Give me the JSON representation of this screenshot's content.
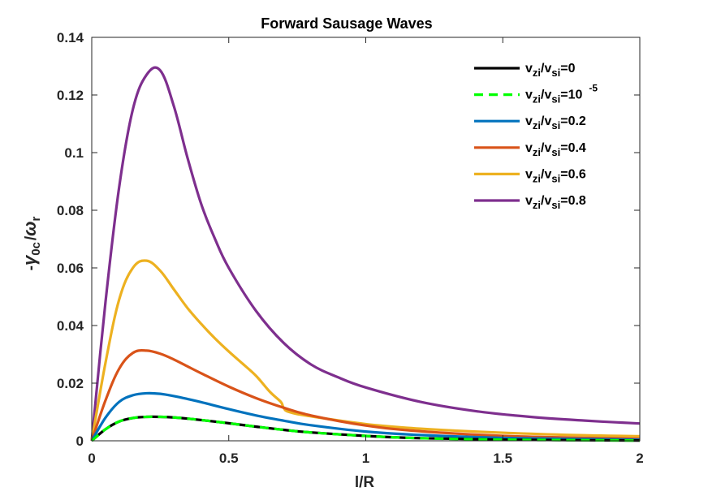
{
  "chart_data": {
    "type": "line",
    "title": "Forward Sausage Waves",
    "xlabel": "l/R",
    "ylabel": {
      "prefix": "-",
      "gamma": "γ",
      "gamma_sub": "0c",
      "slash": "/",
      "omega": "ω",
      "omega_sub": "r"
    },
    "xlim": [
      0,
      2
    ],
    "ylim": [
      0,
      0.14
    ],
    "xticks": [
      0,
      0.5,
      1,
      1.5,
      2
    ],
    "xtick_labels": [
      "0",
      "0.5",
      "1",
      "1.5",
      "2"
    ],
    "yticks": [
      0,
      0.02,
      0.04,
      0.06,
      0.08,
      0.1,
      0.12,
      0.14
    ],
    "ytick_labels": [
      "0",
      "0.02",
      "0.04",
      "0.06",
      "0.08",
      "0.1",
      "0.12",
      "0.14"
    ],
    "grid": false,
    "legend_position": "top-right",
    "series": [
      {
        "legend": {
          "v1": "v",
          "s1": "zi",
          "slash": "/",
          "v2": "v",
          "s2": "si",
          "eq": "=0",
          "sup": ""
        },
        "color": "#000000",
        "dash": "solid",
        "x": [
          0.0,
          0.05,
          0.1,
          0.15,
          0.2,
          0.25,
          0.3,
          0.35,
          0.4,
          0.5,
          0.6,
          0.7,
          0.8,
          1.0,
          1.2,
          1.5,
          1.8,
          2.0
        ],
        "y": [
          0.0,
          0.004,
          0.0067,
          0.0079,
          0.0083,
          0.0083,
          0.0081,
          0.0077,
          0.0072,
          0.0061,
          0.0049,
          0.0038,
          0.0029,
          0.0017,
          0.0009,
          0.0004,
          0.0002,
          0.0001
        ]
      },
      {
        "legend": {
          "v1": "v",
          "s1": "zi",
          "slash": "/",
          "v2": "v",
          "s2": "si",
          "eq": "=10",
          "sup": "-5"
        },
        "color": "#00ff00",
        "dash": "dashed",
        "x": [
          0.0,
          0.05,
          0.1,
          0.15,
          0.2,
          0.25,
          0.3,
          0.35,
          0.4,
          0.5,
          0.6,
          0.7,
          0.8,
          1.0,
          1.2,
          1.5,
          1.8,
          2.0
        ],
        "y": [
          0.0,
          0.004,
          0.0067,
          0.0079,
          0.0083,
          0.0083,
          0.0081,
          0.0077,
          0.0072,
          0.0061,
          0.0049,
          0.0038,
          0.0029,
          0.0017,
          0.0009,
          0.0004,
          0.0002,
          0.0001
        ]
      },
      {
        "legend": {
          "v1": "v",
          "s1": "zi",
          "slash": "/",
          "v2": "v",
          "s2": "si",
          "eq": "=0.2",
          "sup": ""
        },
        "color": "#0072bd",
        "dash": "solid",
        "x": [
          0.0,
          0.05,
          0.1,
          0.15,
          0.2,
          0.25,
          0.3,
          0.35,
          0.4,
          0.5,
          0.6,
          0.7,
          0.8,
          1.0,
          1.2,
          1.5,
          1.8,
          2.0
        ],
        "y": [
          0.0,
          0.008,
          0.0135,
          0.0158,
          0.0165,
          0.0163,
          0.0155,
          0.0145,
          0.0134,
          0.011,
          0.0088,
          0.007,
          0.0054,
          0.0032,
          0.002,
          0.001,
          0.0006,
          0.0004
        ]
      },
      {
        "legend": {
          "v1": "v",
          "s1": "zi",
          "slash": "/",
          "v2": "v",
          "s2": "si",
          "eq": "=0.4",
          "sup": ""
        },
        "color": "#d95319",
        "dash": "solid",
        "x": [
          0.0,
          0.05,
          0.1,
          0.15,
          0.2,
          0.25,
          0.3,
          0.35,
          0.4,
          0.5,
          0.6,
          0.7,
          0.8,
          1.0,
          1.2,
          1.5,
          1.8,
          2.0
        ],
        "y": [
          0.0,
          0.014,
          0.025,
          0.0305,
          0.0313,
          0.0302,
          0.0282,
          0.0258,
          0.0234,
          0.0188,
          0.0148,
          0.0115,
          0.0088,
          0.0053,
          0.0033,
          0.0017,
          0.001,
          0.0007
        ]
      },
      {
        "legend": {
          "v1": "v",
          "s1": "zi",
          "slash": "/",
          "v2": "v",
          "s2": "si",
          "eq": "=0.6",
          "sup": ""
        },
        "color": "#edb120",
        "dash": "solid",
        "x": [
          0.0,
          0.05,
          0.1,
          0.15,
          0.2,
          0.25,
          0.3,
          0.35,
          0.4,
          0.45,
          0.5,
          0.55,
          0.6,
          0.65,
          0.69,
          0.7,
          0.72,
          0.8,
          1.0,
          1.2,
          1.5,
          1.8,
          2.0
        ],
        "y": [
          0.0,
          0.027,
          0.049,
          0.06,
          0.0625,
          0.059,
          0.0525,
          0.046,
          0.0405,
          0.0355,
          0.031,
          0.0268,
          0.0225,
          0.017,
          0.0135,
          0.0115,
          0.01,
          0.0085,
          0.0058,
          0.0042,
          0.0028,
          0.0019,
          0.0016
        ]
      },
      {
        "legend": {
          "v1": "v",
          "s1": "zi",
          "slash": "/",
          "v2": "v",
          "s2": "si",
          "eq": "=0.8",
          "sup": ""
        },
        "color": "#7e2f8e",
        "dash": "solid",
        "x": [
          0.0,
          0.05,
          0.1,
          0.15,
          0.2,
          0.25,
          0.3,
          0.35,
          0.4,
          0.45,
          0.5,
          0.6,
          0.7,
          0.8,
          0.9,
          1.0,
          1.2,
          1.4,
          1.6,
          1.8,
          2.0
        ],
        "y": [
          0.0,
          0.048,
          0.088,
          0.115,
          0.127,
          0.1285,
          0.116,
          0.098,
          0.082,
          0.07,
          0.06,
          0.045,
          0.034,
          0.0265,
          0.022,
          0.0185,
          0.0135,
          0.0103,
          0.0083,
          0.007,
          0.006
        ]
      }
    ]
  }
}
